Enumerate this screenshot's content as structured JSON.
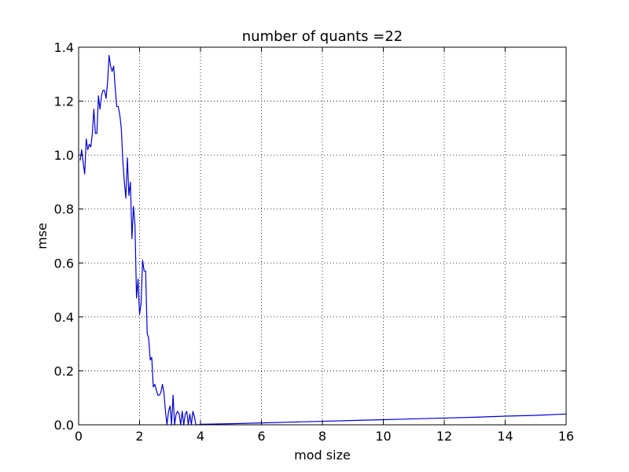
{
  "chart_data": {
    "type": "line",
    "title": "number of quants =22",
    "xlabel": "mod size",
    "ylabel": "mse",
    "xlim": [
      0,
      16
    ],
    "ylim": [
      0.0,
      1.4
    ],
    "xticks": [
      0,
      2,
      4,
      6,
      8,
      10,
      12,
      14,
      16
    ],
    "xtick_labels": [
      "0",
      "2",
      "4",
      "6",
      "8",
      "10",
      "12",
      "14",
      "16"
    ],
    "yticks": [
      0.0,
      0.2,
      0.4,
      0.6,
      0.8,
      1.0,
      1.2,
      1.4
    ],
    "ytick_labels": [
      "0.0",
      "0.2",
      "0.4",
      "0.6",
      "0.8",
      "1.0",
      "1.2",
      "1.4"
    ],
    "grid": true,
    "line_color": "#0000cc",
    "series": [
      {
        "x": [
          0.05,
          0.1,
          0.15,
          0.2,
          0.25,
          0.3,
          0.35,
          0.4,
          0.45,
          0.5,
          0.55,
          0.6,
          0.65,
          0.7,
          0.75,
          0.8,
          0.85,
          0.9,
          0.95,
          1.0,
          1.05,
          1.1,
          1.15,
          1.2,
          1.25,
          1.3,
          1.35,
          1.4,
          1.45,
          1.5,
          1.55,
          1.6,
          1.65,
          1.7,
          1.75,
          1.8,
          1.85,
          1.9,
          1.95,
          2.0,
          2.05,
          2.1,
          2.15,
          2.2,
          2.25,
          2.3,
          2.35,
          2.4,
          2.45,
          2.5,
          2.55,
          2.6,
          2.65,
          2.7,
          2.75,
          2.8,
          2.85,
          2.9,
          2.95,
          3.0,
          3.05,
          3.1,
          3.15,
          3.2,
          3.25,
          3.3,
          3.35,
          3.4,
          3.45,
          3.5,
          3.55,
          3.6,
          3.65,
          3.7,
          3.75,
          3.8,
          3.85,
          3.9,
          3.95,
          4.0,
          5.0,
          6.0,
          7.0,
          8.0,
          9.0,
          10.0,
          11.0,
          12.0,
          13.0,
          14.0,
          15.0,
          16.0
        ],
        "y": [
          0.98,
          1.02,
          0.97,
          0.93,
          1.06,
          1.02,
          1.04,
          1.03,
          1.08,
          1.17,
          1.08,
          1.08,
          1.22,
          1.17,
          1.22,
          1.24,
          1.24,
          1.21,
          1.27,
          1.37,
          1.33,
          1.31,
          1.33,
          1.25,
          1.18,
          1.18,
          1.15,
          1.1,
          0.98,
          0.9,
          0.84,
          0.99,
          0.85,
          0.9,
          0.69,
          0.81,
          0.74,
          0.47,
          0.54,
          0.41,
          0.45,
          0.61,
          0.57,
          0.57,
          0.34,
          0.32,
          0.24,
          0.25,
          0.14,
          0.15,
          0.13,
          0.11,
          0.11,
          0.12,
          0.15,
          0.12,
          0.05,
          0.0,
          0.05,
          0.07,
          0.0,
          0.11,
          0.0,
          0.04,
          0.05,
          0.04,
          0.0,
          0.05,
          0.0,
          0.04,
          0.05,
          0.0,
          0.04,
          0.0,
          0.05,
          0.03,
          0.0,
          0.0,
          0.0,
          0.002,
          0.004,
          0.007,
          0.01,
          0.013,
          0.016,
          0.019,
          0.022,
          0.025,
          0.028,
          0.032,
          0.035,
          0.04
        ]
      }
    ]
  }
}
